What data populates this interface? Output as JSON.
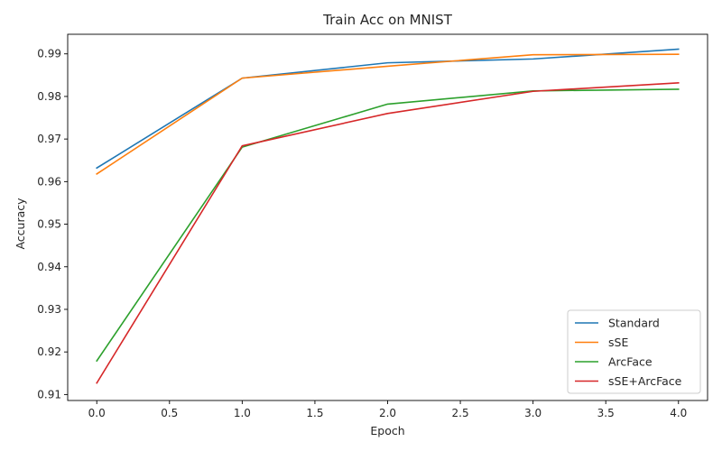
{
  "chart_data": {
    "type": "line",
    "title": "Train Acc on MNIST",
    "xlabel": "Epoch",
    "ylabel": "Accuracy",
    "x": [
      0,
      1,
      2,
      3,
      4
    ],
    "xlim": [
      -0.2,
      4.2
    ],
    "ylim": [
      0.9086,
      0.9946
    ],
    "xticks": [
      0.0,
      0.5,
      1.0,
      1.5,
      2.0,
      2.5,
      3.0,
      3.5,
      4.0
    ],
    "xtick_labels": [
      "0.0",
      "0.5",
      "1.0",
      "1.5",
      "2.0",
      "2.5",
      "3.0",
      "3.5",
      "4.0"
    ],
    "yticks": [
      0.91,
      0.92,
      0.93,
      0.94,
      0.95,
      0.96,
      0.97,
      0.98,
      0.99
    ],
    "ytick_labels": [
      "0.91",
      "0.92",
      "0.93",
      "0.94",
      "0.95",
      "0.96",
      "0.97",
      "0.98",
      "0.99"
    ],
    "grid": false,
    "legend_position": "lower-right",
    "series": [
      {
        "name": "Standard",
        "color": "#1f77b4",
        "values": [
          0.9632,
          0.9843,
          0.9879,
          0.9888,
          0.9911
        ]
      },
      {
        "name": "sSE",
        "color": "#ff7f0e",
        "values": [
          0.9618,
          0.9843,
          0.9871,
          0.9898,
          0.9899
        ]
      },
      {
        "name": "ArcFace",
        "color": "#2ca02c",
        "values": [
          0.9179,
          0.9681,
          0.9782,
          0.9813,
          0.9817
        ]
      },
      {
        "name": "sSE+ArcFace",
        "color": "#d62728",
        "values": [
          0.9127,
          0.9684,
          0.976,
          0.9812,
          0.9832
        ]
      }
    ]
  }
}
